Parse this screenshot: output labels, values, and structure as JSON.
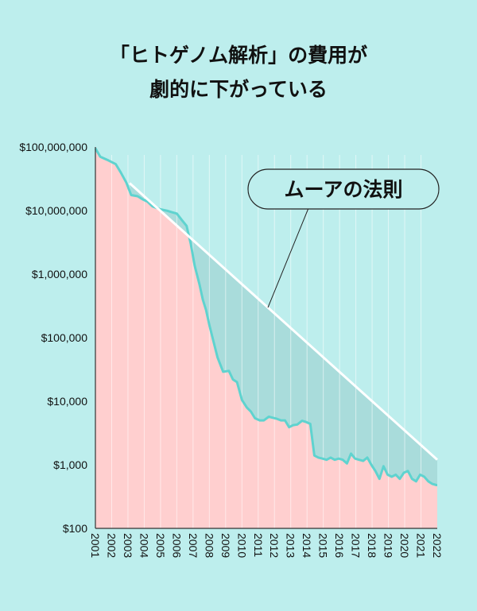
{
  "title_line1": "「ヒトゲノム解析」の費用が",
  "title_line2": "劇的に下がっている",
  "chart_data": {
    "type": "area",
    "title": "「ヒトゲノム解析」の費用が劇的に下がっている",
    "xlabel": "",
    "ylabel": "",
    "y_scale": "log",
    "ylim": [
      100,
      100000000
    ],
    "xlim": [
      2001,
      2022
    ],
    "y_ticks": [
      "$100,000,000",
      "$10,000,000",
      "$1,000,000",
      "$100,000",
      "$10,000",
      "$1,000",
      "$100"
    ],
    "y_tick_values": [
      100000000,
      10000000,
      1000000,
      100000,
      10000,
      1000,
      100
    ],
    "x_ticks": [
      "2001",
      "2002",
      "2003",
      "2004",
      "2005",
      "2006",
      "2007",
      "2008",
      "2009",
      "2010",
      "2011",
      "2012",
      "2013",
      "2014",
      "2015",
      "2016",
      "2017",
      "2018",
      "2019",
      "2020",
      "2021",
      "2022"
    ],
    "grid": true,
    "series": [
      {
        "name": "",
        "color": "#5fd3cf",
        "fill": "#ffcfcf",
        "x": [
          2001.0,
          2001.3,
          2001.8,
          2002.25,
          2002.55,
          2002.9,
          2003.2,
          2003.6,
          2003.9,
          2004.2,
          2004.5,
          2005.0,
          2005.4,
          2005.7,
          2006.0,
          2006.3,
          2006.6,
          2006.85,
          2007.1,
          2007.4,
          2007.6,
          2007.8,
          2008.0,
          2008.2,
          2008.5,
          2008.85,
          2009.2,
          2009.45,
          2009.7,
          2010.0,
          2010.3,
          2010.55,
          2010.8,
          2011.1,
          2011.35,
          2011.65,
          2011.9,
          2012.15,
          2012.4,
          2012.65,
          2012.9,
          2013.15,
          2013.4,
          2013.7,
          2013.95,
          2014.2,
          2014.45,
          2014.7,
          2014.95,
          2015.2,
          2015.45,
          2015.7,
          2015.95,
          2016.2,
          2016.45,
          2016.7,
          2016.95,
          2017.2,
          2017.45,
          2017.7,
          2017.95,
          2018.2,
          2018.45,
          2018.7,
          2018.95,
          2019.2,
          2019.45,
          2019.7,
          2019.95,
          2020.2,
          2020.45,
          2020.7,
          2020.95,
          2021.2,
          2021.45,
          2021.7,
          2021.95
        ],
        "values": [
          95263072,
          70175437,
          61448422,
          53751684,
          40157554,
          27571813,
          17534682,
          16812002,
          14994475,
          13801124,
          11641682,
          10428389,
          9947583,
          9408739,
          8956769,
          7147571,
          5730886,
          3063751,
          1352982,
          681584,
          397262,
          272300,
          159000,
          99000,
          49000,
          29092,
          30000,
          22000,
          20000,
          10500,
          8000,
          6900,
          5400,
          5000,
          5000,
          5700,
          5500,
          5300,
          5000,
          5000,
          3900,
          4200,
          4300,
          4920,
          4700,
          4400,
          1400,
          1300,
          1250,
          1200,
          1300,
          1200,
          1250,
          1200,
          1050,
          1500,
          1250,
          1200,
          1150,
          1300,
          1000,
          800,
          600,
          950,
          700,
          650,
          700,
          600,
          750,
          800,
          600,
          550,
          700,
          650,
          550,
          500,
          480
        ]
      },
      {
        "name": "ムーアの法則",
        "color": "#ffffff",
        "x": [
          2003.1,
          2022.0
        ],
        "values": [
          27000000,
          1200
        ]
      }
    ],
    "annotations": [
      {
        "text": "ムーアの法則",
        "target_series": "ムーアの法則"
      }
    ]
  }
}
